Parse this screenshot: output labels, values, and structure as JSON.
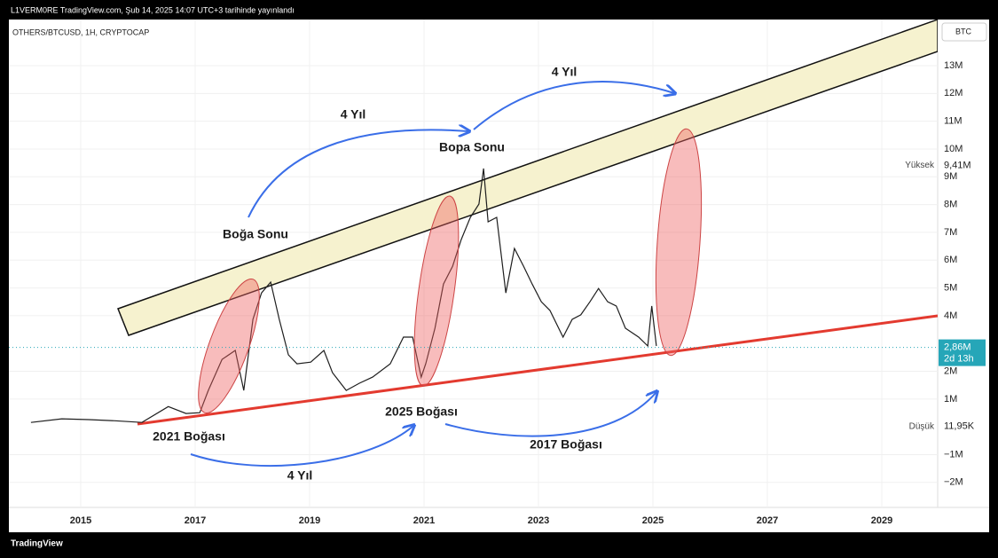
{
  "header": {
    "publisher": "L1VERM0RE TradingView.com, Şub 14, 2025 14:07 UTC+3 tarihinde yayınlandı",
    "brand": "TradingView"
  },
  "chart_data": {
    "type": "line",
    "title": "OTHERS/BTCUSD, 1H, CRYPTOCAP",
    "currency": "BTC",
    "x": [
      2014.13,
      2014.67,
      2015.14,
      2015.6,
      2016.07,
      2016.53,
      2016.84,
      2017.08,
      2017.23,
      2017.47,
      2017.7,
      2017.85,
      2018.01,
      2018.16,
      2018.32,
      2018.47,
      2018.63,
      2018.78,
      2019.02,
      2019.25,
      2019.4,
      2019.64,
      2019.87,
      2020.1,
      2020.41,
      2020.64,
      2020.8,
      2020.95,
      2021.03,
      2021.19,
      2021.34,
      2021.5,
      2021.65,
      2021.81,
      2021.96,
      2022.04,
      2022.12,
      2022.27,
      2022.43,
      2022.58,
      2022.74,
      2022.89,
      2023.05,
      2023.2,
      2023.43,
      2023.59,
      2023.74,
      2023.9,
      2024.05,
      2024.21,
      2024.36,
      2024.52,
      2024.75,
      2024.91,
      2024.98,
      2025.06
    ],
    "series": [
      {
        "name": "OTHERS/BTCUSD",
        "color": "#1e1e1e",
        "values": [
          160000,
          290000,
          260000,
          220000,
          160000,
          730000,
          480000,
          510000,
          1310000,
          2430000,
          2750000,
          1310000,
          3870000,
          4820000,
          5210000,
          3870000,
          2590000,
          2270000,
          2330000,
          2750000,
          1950000,
          1310000,
          1570000,
          1790000,
          2270000,
          3230000,
          3230000,
          1790000,
          2270000,
          3550000,
          5140000,
          5780000,
          6740000,
          7540000,
          8020000,
          9300000,
          7380000,
          7540000,
          4820000,
          6420000,
          5780000,
          5140000,
          4500000,
          4190000,
          3230000,
          3870000,
          4030000,
          4500000,
          4980000,
          4500000,
          4350000,
          3550000,
          3230000,
          2910000,
          4350000,
          2910000
        ]
      }
    ],
    "xlim": [
      2013.744,
      2029.977
    ],
    "xticks": [
      2015,
      2017,
      2019,
      2021,
      2023,
      2025,
      2027,
      2029
    ],
    "ylim": [
      -2900000,
      14660000
    ],
    "yticks": [
      {
        "value": -2000000,
        "label": "−2M"
      },
      {
        "value": -1000000,
        "label": "−1M"
      },
      {
        "value": 1000000,
        "label": "1M"
      },
      {
        "value": 2000000,
        "label": "2M"
      },
      {
        "value": 4000000,
        "label": "4M"
      },
      {
        "value": 5000000,
        "label": "5M"
      },
      {
        "value": 6000000,
        "label": "6M"
      },
      {
        "value": 7000000,
        "label": "7M"
      },
      {
        "value": 8000000,
        "label": "8M"
      },
      {
        "value": 9000000,
        "label": "9M"
      },
      {
        "value": 10000000,
        "label": "10M"
      },
      {
        "value": 11000000,
        "label": "11M"
      },
      {
        "value": 12000000,
        "label": "12M"
      },
      {
        "value": 13000000,
        "label": "13M"
      }
    ],
    "grid": true,
    "price_labels": [
      {
        "name": "Yüksek",
        "value": 9410000,
        "value_label": "9,41M"
      },
      {
        "name": "Düşük",
        "value": 11950,
        "value_label": "11,95K"
      },
      {
        "name": "2d 13h",
        "value": 2860000,
        "value_label": "2,86M"
      }
    ],
    "annotations": [
      "Boğa Sonu",
      "Bopa Sonu",
      "4 Yıl",
      "4 Yıl",
      "4 Yıl",
      "2017 Boğası",
      "2021 Boğası",
      "2025 Boğası"
    ]
  }
}
